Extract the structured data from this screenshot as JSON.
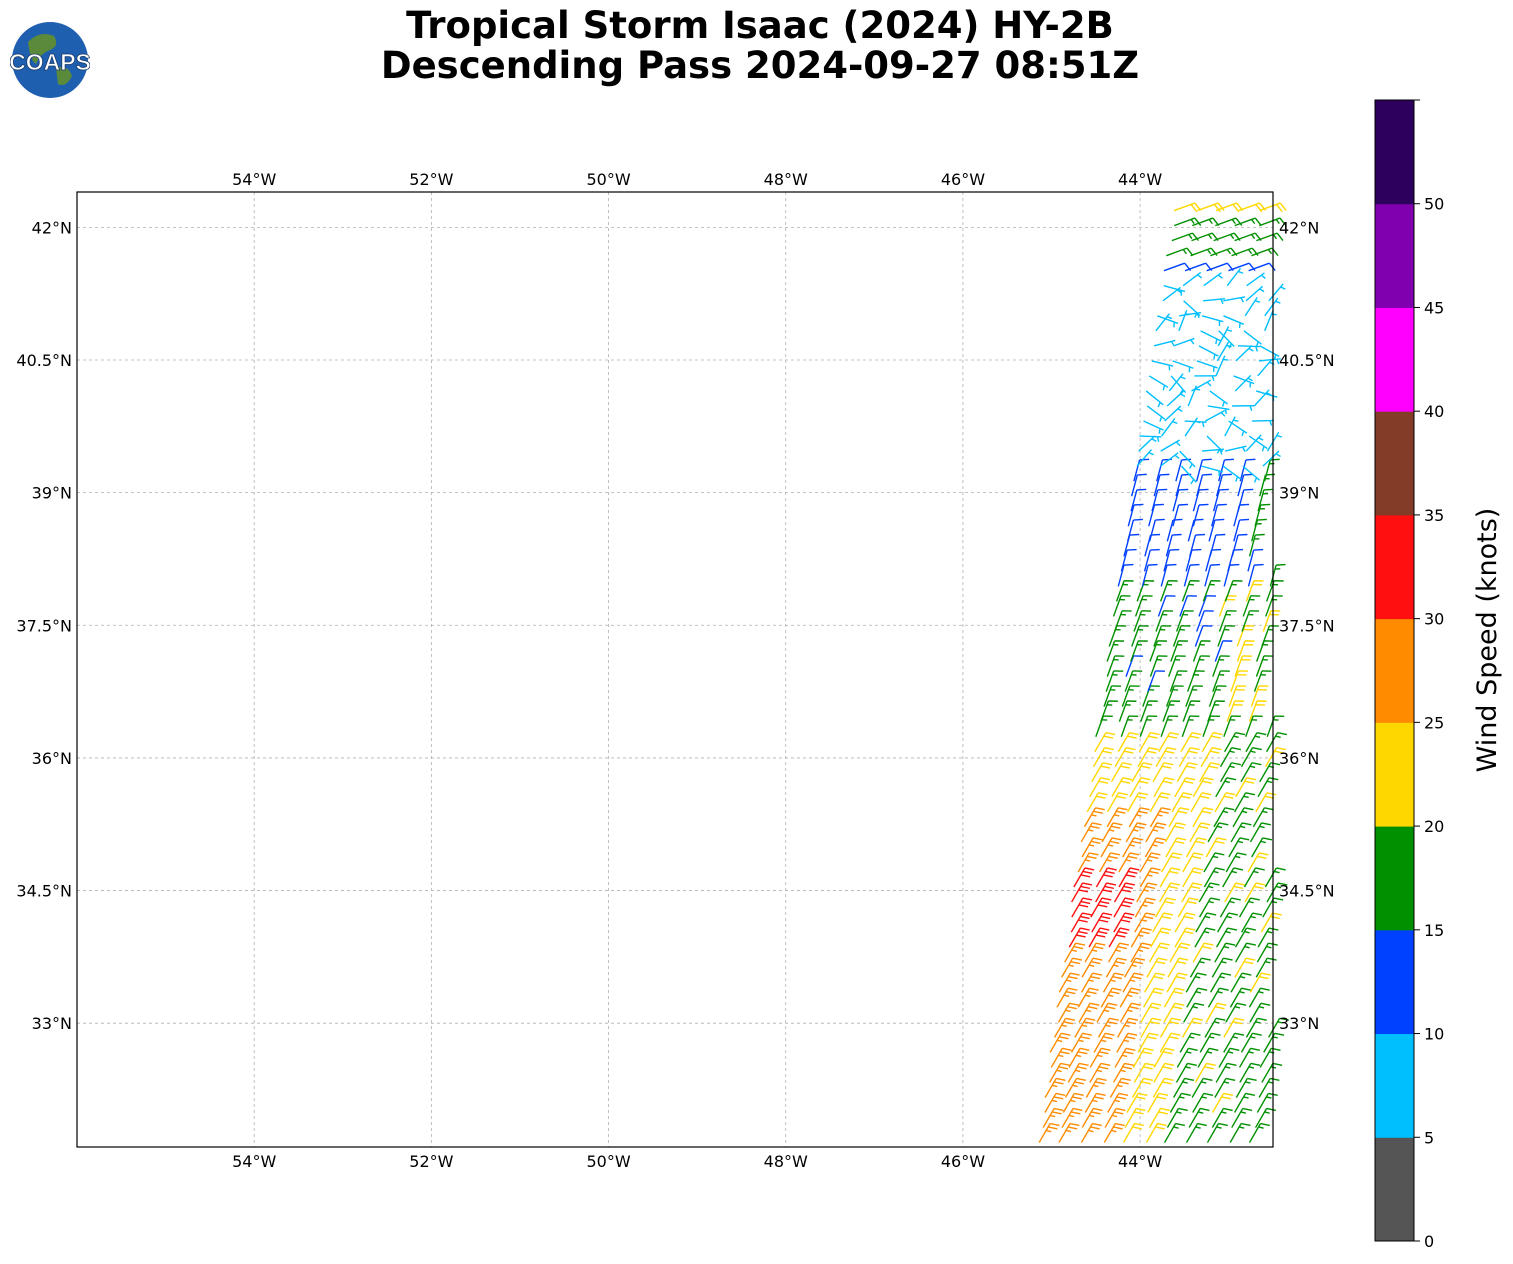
{
  "title": {
    "line1": "Tropical Storm Isaac (2024) HY-2B",
    "line2": "Descending Pass 2024-09-27 08:51Z"
  },
  "logo": {
    "text": "COAPS",
    "icon": "globe-logo-icon"
  },
  "map": {
    "lon_labels": [
      "54°W",
      "52°W",
      "50°W",
      "48°W",
      "46°W",
      "44°W"
    ],
    "lat_labels": [
      "42°N",
      "40.5°N",
      "39°N",
      "37.5°N",
      "36°N",
      "34.5°N",
      "33°N"
    ],
    "lon_values": [
      -54,
      -52,
      -50,
      -48,
      -46,
      -44
    ],
    "lat_values": [
      42,
      40.5,
      39,
      37.5,
      36,
      34.5,
      33
    ],
    "lon_range": [
      -56,
      -42.5
    ],
    "lat_range": [
      31.6,
      42.4
    ],
    "grid": true,
    "barb_type": "wind-barbs",
    "swath": "right edge of map, lon -45.2 to -42.5, full latitude range"
  },
  "colorbar": {
    "label": "Wind Speed (knots)",
    "ticks": [
      "0",
      "5",
      "10",
      "15",
      "20",
      "25",
      "30",
      "35",
      "40",
      "45",
      "50"
    ],
    "bins": [
      {
        "min": 0,
        "max": 5,
        "color": "#555555"
      },
      {
        "min": 5,
        "max": 10,
        "color": "#00bfff"
      },
      {
        "min": 10,
        "max": 15,
        "color": "#0040ff"
      },
      {
        "min": 15,
        "max": 20,
        "color": "#009000"
      },
      {
        "min": 20,
        "max": 25,
        "color": "#ffd700"
      },
      {
        "min": 25,
        "max": 30,
        "color": "#ff8c00"
      },
      {
        "min": 30,
        "max": 35,
        "color": "#ff0f0f"
      },
      {
        "min": 35,
        "max": 40,
        "color": "#823c28"
      },
      {
        "min": 40,
        "max": 45,
        "color": "#ff00ff"
      },
      {
        "min": 45,
        "max": 50,
        "color": "#8000b0"
      },
      {
        "min": 50,
        "max": 55,
        "color": "#2e005e"
      }
    ]
  }
}
